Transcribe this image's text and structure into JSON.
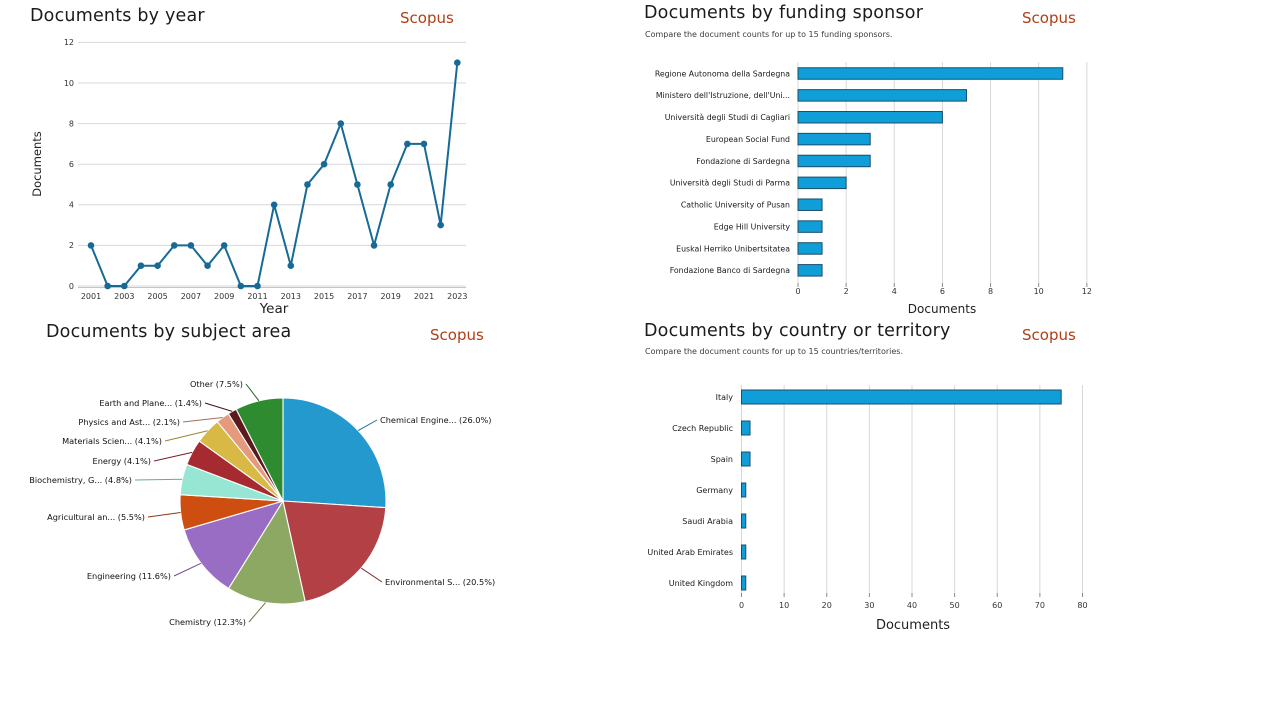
{
  "colors": {
    "scopus_brand": "#B03E14",
    "bar_fill": "#0F9ED7",
    "bar_border": "#1D4E6B",
    "line": "#176A96",
    "grid": "#D8D8D8",
    "tick_text": "#333333",
    "title_text": "#1B1B1B"
  },
  "chart_data": [
    {
      "type": "line",
      "title": "Documents by year",
      "brand": "Scopus",
      "xlabel": "Year",
      "ylabel": "Documents",
      "x": [
        2001,
        2002,
        2003,
        2004,
        2005,
        2006,
        2007,
        2008,
        2009,
        2010,
        2011,
        2012,
        2013,
        2014,
        2015,
        2016,
        2017,
        2018,
        2019,
        2020,
        2021,
        2022,
        2023
      ],
      "values": [
        2,
        0,
        0,
        1,
        1,
        2,
        2,
        1,
        2,
        0,
        0,
        4,
        1,
        5,
        6,
        8,
        5,
        2,
        5,
        7,
        7,
        3,
        11
      ],
      "xticks": [
        2001,
        2003,
        2005,
        2007,
        2009,
        2011,
        2013,
        2015,
        2017,
        2019,
        2021,
        2023
      ],
      "yticks": [
        0,
        2,
        4,
        6,
        8,
        10,
        12
      ],
      "ylim": [
        0,
        12
      ],
      "grid": true,
      "legend": "none"
    },
    {
      "type": "bar",
      "orientation": "horizontal",
      "title": "Documents by funding sponsor",
      "subtitle": "Compare the document counts for up to 15 funding sponsors.",
      "brand": "Scopus",
      "xlabel": "Documents",
      "categories": [
        "Regione Autonoma della Sardegna",
        "Ministero dell'Istruzione, dell'Uni...",
        "Università degli Studi di Cagliari",
        "European Social Fund",
        "Fondazione di Sardegna",
        "Università degli Studi di Parma",
        "Catholic University of Pusan",
        "Edge Hill University",
        "Euskal Herriko Unibertsitatea",
        "Fondazione Banco di Sardegna"
      ],
      "values": [
        11,
        7,
        6,
        3,
        3,
        2,
        1,
        1,
        1,
        1
      ],
      "xticks": [
        0,
        2,
        4,
        6,
        8,
        10,
        12
      ],
      "xlim": [
        0,
        12
      ],
      "grid": true,
      "legend": "none"
    },
    {
      "type": "pie",
      "title": "Documents by subject area",
      "brand": "Scopus",
      "slices": [
        {
          "label": "Chemical Engine... (26.0%)",
          "value": 26.0,
          "color": "#2499CD"
        },
        {
          "label": "Environmental S... (20.5%)",
          "value": 20.5,
          "color": "#B34045"
        },
        {
          "label": "Chemistry (12.3%)",
          "value": 12.3,
          "color": "#8CA862"
        },
        {
          "label": "Engineering (11.6%)",
          "value": 11.6,
          "color": "#9A6DC5"
        },
        {
          "label": "Agricultural an... (5.5%)",
          "value": 5.5,
          "color": "#CE4E10"
        },
        {
          "label": "Biochemistry, G... (4.8%)",
          "value": 4.8,
          "color": "#97E5D3"
        },
        {
          "label": "Energy (4.1%)",
          "value": 4.1,
          "color": "#A62B31"
        },
        {
          "label": "Materials Scien... (4.1%)",
          "value": 4.1,
          "color": "#D9B945"
        },
        {
          "label": "Physics and Ast... (2.1%)",
          "value": 2.1,
          "color": "#E59A7D"
        },
        {
          "label": "Earth and Plane... (1.4%)",
          "value": 1.4,
          "color": "#5C1A1F"
        },
        {
          "label": "Other (7.5%)",
          "value": 7.5,
          "color": "#2E8B2F"
        }
      ],
      "legend": "callout-labels"
    },
    {
      "type": "bar",
      "orientation": "horizontal",
      "title": "Documents by country or territory",
      "subtitle": "Compare the document counts for up to 15 countries/territories.",
      "brand": "Scopus",
      "xlabel": "Documents",
      "categories": [
        "Italy",
        "Czech Republic",
        "Spain",
        "Germany",
        "Saudi Arabia",
        "United Arab Emirates",
        "United Kingdom"
      ],
      "values": [
        75,
        2,
        2,
        1,
        1,
        1,
        1
      ],
      "xticks": [
        0,
        10,
        20,
        30,
        40,
        50,
        60,
        70,
        80
      ],
      "xlim": [
        0,
        80
      ],
      "grid": true,
      "legend": "none"
    }
  ]
}
